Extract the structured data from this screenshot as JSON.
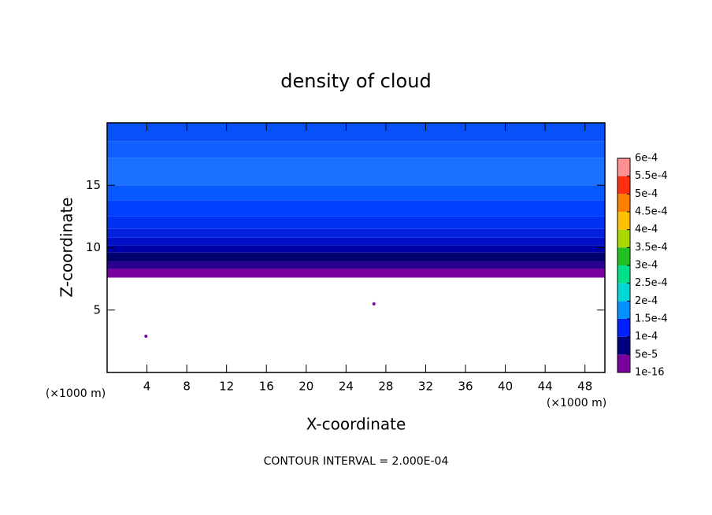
{
  "chart_data": {
    "type": "contour",
    "title": "density of cloud",
    "xlabel": "X-coordinate",
    "ylabel": "Z-coordinate",
    "x_unit": "(×1000 m)",
    "y_unit": "(×1000 m)",
    "footer": "CONTOUR INTERVAL = 2.000E-04",
    "xlim": [
      0,
      50
    ],
    "ylim": [
      0,
      20
    ],
    "xticks": [
      4,
      8,
      12,
      16,
      20,
      24,
      28,
      32,
      36,
      40,
      44,
      48
    ],
    "yticks": [
      5,
      10,
      15
    ],
    "bands": [
      {
        "zlim": [
          7.6,
          8.3
        ],
        "color": "#7a00a0"
      },
      {
        "zlim": [
          8.3,
          8.9
        ],
        "color": "#2c0090"
      },
      {
        "zlim": [
          8.9,
          9.6
        ],
        "color": "#00006e"
      },
      {
        "zlim": [
          9.6,
          10.2
        ],
        "color": "#0000a8"
      },
      {
        "zlim": [
          10.2,
          10.8
        ],
        "color": "#0010c8"
      },
      {
        "zlim": [
          10.8,
          11.5
        ],
        "color": "#0020e0"
      },
      {
        "zlim": [
          11.5,
          12.5
        ],
        "color": "#0030f0"
      },
      {
        "zlim": [
          12.5,
          13.8
        ],
        "color": "#0040ff"
      },
      {
        "zlim": [
          13.8,
          15
        ],
        "color": "#0858ff"
      },
      {
        "zlim": [
          15,
          17.2
        ],
        "color": "#1a70ff"
      },
      {
        "zlim": [
          17.2,
          18.5
        ],
        "color": "#1060ff"
      },
      {
        "zlim": [
          18.5,
          20
        ],
        "color": "#0850f8"
      }
    ],
    "spots": {
      "x": [
        3.9,
        26.8
      ],
      "y": [
        2.9,
        5.5
      ],
      "color": "#7a00a0"
    },
    "colorbar": {
      "levels": [
        {
          "value": 1e-16,
          "label": "1e-16"
        },
        {
          "value": 5e-05,
          "label": "5e-5"
        },
        {
          "value": 0.0001,
          "label": "1e-4"
        },
        {
          "value": 0.00015,
          "label": "1.5e-4"
        },
        {
          "value": 0.0002,
          "label": "2e-4"
        },
        {
          "value": 0.00025,
          "label": "2.5e-4"
        },
        {
          "value": 0.0003,
          "label": "3e-4"
        },
        {
          "value": 0.00035,
          "label": "3.5e-4"
        },
        {
          "value": 0.0004,
          "label": "4e-4"
        },
        {
          "value": 0.00045,
          "label": "4.5e-4"
        },
        {
          "value": 0.0005,
          "label": "5e-4"
        },
        {
          "value": 0.00055,
          "label": "5.5e-4"
        },
        {
          "value": 0.0006,
          "label": "6e-4"
        }
      ],
      "colors": [
        "#7a00a0",
        "#000080",
        "#0020ff",
        "#0090ff",
        "#00d8d8",
        "#00e08a",
        "#20c020",
        "#a8d800",
        "#ffc000",
        "#ff8000",
        "#ff3010",
        "#ff9090"
      ]
    }
  }
}
